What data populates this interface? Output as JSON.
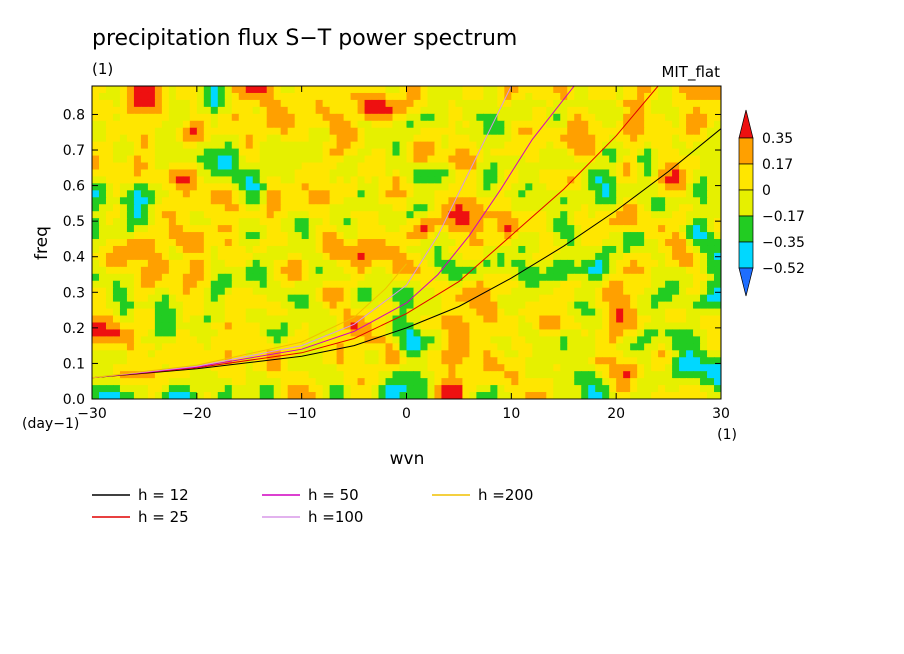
{
  "chart_data": {
    "type": "heatmap",
    "title": "precipitation flux S−T power spectrum",
    "subtitle_left": "(1)",
    "subtitle_right": "MIT_flat",
    "xlabel": "wvn",
    "ylabel": "freq",
    "x_unit": "(1)",
    "y_unit": "(day−1)",
    "xlim": [
      -30,
      30
    ],
    "ylim": [
      0,
      0.88
    ],
    "x_ticks": [
      -30,
      -20,
      -10,
      0,
      10,
      20,
      30
    ],
    "x_tick_labels": [
      "−30",
      "−20",
      "−10",
      "0",
      "10",
      "20",
      "30"
    ],
    "y_ticks": [
      0,
      0.1,
      0.2,
      0.3,
      0.4,
      0.5,
      0.6,
      0.7,
      0.8
    ],
    "y_tick_labels": [
      "0.0",
      "0.1",
      "0.2",
      "0.3",
      "0.4",
      "0.5",
      "0.6",
      "0.7",
      "0.8"
    ],
    "colorbar": {
      "levels": [
        -0.52,
        -0.35,
        -0.17,
        0,
        0.17,
        0.35
      ],
      "level_labels": [
        "−0.52",
        "−0.35",
        "−0.17",
        "0",
        "0.17",
        "0.35"
      ],
      "colors": [
        "#1e6eff",
        "#00d8ff",
        "#22cc22",
        "#e6f000",
        "#ffe600",
        "#ffa000",
        "#ee1010"
      ]
    },
    "field_summary": "noisy field mostly between -0.17 and 0.17 (green/yellow) with scattered cyan, blue, orange and red patches",
    "dispersion_curves": [
      {
        "label": "h = 12",
        "color": "#000000",
        "x": [
          -30,
          -20,
          -10,
          -5,
          0,
          5,
          10,
          15,
          20,
          25,
          30
        ],
        "y": [
          0.06,
          0.085,
          0.12,
          0.15,
          0.2,
          0.26,
          0.34,
          0.43,
          0.53,
          0.64,
          0.76
        ]
      },
      {
        "label": "h = 25",
        "color": "#e00000",
        "x": [
          -30,
          -20,
          -10,
          -5,
          0,
          5,
          10,
          15,
          20,
          24
        ],
        "y": [
          0.06,
          0.088,
          0.13,
          0.17,
          0.24,
          0.33,
          0.46,
          0.59,
          0.74,
          0.88
        ]
      },
      {
        "label": "h = 50",
        "color": "#d000c0",
        "x": [
          -30,
          -20,
          -10,
          -5,
          0,
          3,
          6,
          9,
          12,
          16
        ],
        "y": [
          0.06,
          0.09,
          0.14,
          0.19,
          0.27,
          0.35,
          0.46,
          0.59,
          0.73,
          0.88
        ]
      },
      {
        "label": "h =100",
        "color": "#d898e8",
        "x": [
          -30,
          -20,
          -10,
          -5,
          0,
          3,
          6,
          10
        ],
        "y": [
          0.06,
          0.092,
          0.15,
          0.21,
          0.32,
          0.46,
          0.64,
          0.88
        ]
      },
      {
        "label": "h =200",
        "color": "#f0c000",
        "x": [
          -30,
          -20,
          -10,
          -5,
          -2,
          0
        ],
        "y": [
          0.06,
          0.095,
          0.16,
          0.23,
          0.31,
          0.38
        ]
      }
    ]
  }
}
